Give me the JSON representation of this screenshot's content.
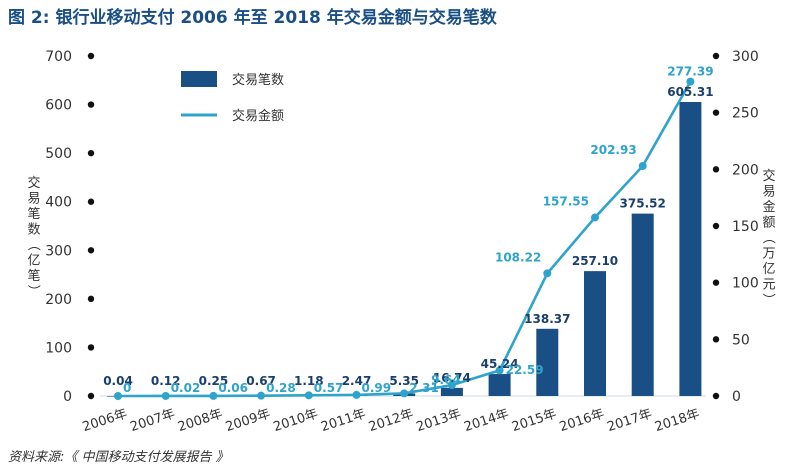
{
  "title": "图 2: 银行业移动支付 2006 年至 2018 年交易金额与交易笔数",
  "source": "资料来源:《 中国移动支付发展报告 》",
  "chart_data": {
    "type": "bar",
    "categories": [
      "2006年",
      "2007年",
      "2008年",
      "2009年",
      "2010年",
      "2011年",
      "2012年",
      "2013年",
      "2014年",
      "2015年",
      "2016年",
      "2017年",
      "2018年"
    ],
    "series": [
      {
        "name": "交易笔数",
        "type": "bar",
        "axis": "left",
        "color": "#1a4f86",
        "values": [
          0.04,
          0.12,
          0.25,
          0.67,
          1.18,
          2.47,
          5.35,
          16.74,
          45.24,
          138.37,
          257.1,
          375.52,
          605.31
        ],
        "labels": [
          "0.04",
          "0.12",
          "0.25",
          "0.67",
          "1.18",
          "2.47",
          "5.35",
          "16.74",
          "45.24",
          "138.37",
          "257.10",
          "375.52",
          "605.31"
        ]
      },
      {
        "name": "交易金额",
        "type": "line",
        "axis": "right",
        "color": "#2ea3cc",
        "values": [
          0,
          0.02,
          0.06,
          0.28,
          0.57,
          0.99,
          2.31,
          9.64,
          22.59,
          108.22,
          157.55,
          202.93,
          277.39
        ],
        "labels": [
          "0",
          "0.02",
          "0.06",
          "0.28",
          "0.57",
          "0.99",
          "2.31",
          "9.64",
          "22.59",
          "108.22",
          "157.55",
          "202.93",
          "277.39"
        ]
      }
    ],
    "ylabel_left": "交易笔数（亿笔）",
    "ylabel_right": "交易金额（万亿元）",
    "ylim_left": [
      0,
      700
    ],
    "yticks_left": [
      0,
      100,
      200,
      300,
      400,
      500,
      600,
      700
    ],
    "ylim_right": [
      0,
      300
    ],
    "yticks_right": [
      0,
      50,
      100,
      150,
      200,
      250,
      300
    ],
    "legend_position": "top-left",
    "grid": false
  }
}
